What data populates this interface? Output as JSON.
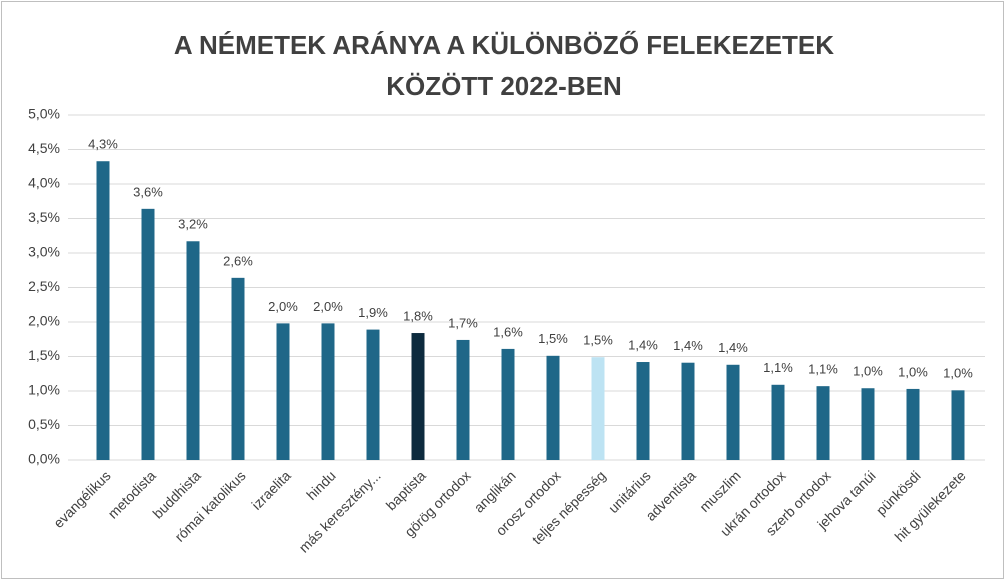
{
  "chart_data": {
    "type": "bar",
    "title": [
      "A NÉMETEK ARÁNYA A KÜLÖNBÖZŐ FELEKEZETEK",
      "KÖZÖTT 2022-BEN"
    ],
    "categories": [
      "evangélikus",
      "metodista",
      "buddhista",
      "római katolikus",
      "izraelita",
      "hindu",
      "más keresztény...",
      "baptista",
      "görög ortodox",
      "anglikán",
      "orosz ortodox",
      "teljes népesség",
      "unitárius",
      "adventista",
      "muszlim",
      "ukrán ortodox",
      "szerb ortodox",
      "jehova tanúi",
      "pünkösdi",
      "hit gyülekezete"
    ],
    "values": [
      4.33,
      3.64,
      3.17,
      2.64,
      1.98,
      1.98,
      1.89,
      1.84,
      1.74,
      1.61,
      1.51,
      1.49,
      1.42,
      1.41,
      1.38,
      1.09,
      1.07,
      1.04,
      1.03,
      1.01
    ],
    "value_labels": [
      "4,3%",
      "3,6%",
      "3,2%",
      "2,6%",
      "2,0%",
      "2,0%",
      "1,9%",
      "1,8%",
      "1,7%",
      "1,6%",
      "1,5%",
      "1,5%",
      "1,4%",
      "1,4%",
      "1,4%",
      "1,1%",
      "1,1%",
      "1,0%",
      "1,0%",
      "1,0%"
    ],
    "colors": [
      "#1f6788",
      "#1f6788",
      "#1f6788",
      "#1f6788",
      "#1f6788",
      "#1f6788",
      "#1f6788",
      "#0d2b3e",
      "#1f6788",
      "#1f6788",
      "#1f6788",
      "#bde3f3",
      "#1f6788",
      "#1f6788",
      "#1f6788",
      "#1f6788",
      "#1f6788",
      "#1f6788",
      "#1f6788",
      "#1f6788"
    ],
    "ylim": [
      0,
      5
    ],
    "yticks": [
      {
        "value": 0,
        "label": "0,0%"
      },
      {
        "value": 0.5,
        "label": "0,5%"
      },
      {
        "value": 1,
        "label": "1,0%"
      },
      {
        "value": 1.5,
        "label": "1,5%"
      },
      {
        "value": 2,
        "label": "2,0%"
      },
      {
        "value": 2.5,
        "label": "2,5%"
      },
      {
        "value": 3,
        "label": "3,0%"
      },
      {
        "value": 3.5,
        "label": "3,5%"
      },
      {
        "value": 4,
        "label": "4,0%"
      },
      {
        "value": 4.5,
        "label": "4,5%"
      },
      {
        "value": 5,
        "label": "5,0%"
      }
    ],
    "grid": true
  }
}
